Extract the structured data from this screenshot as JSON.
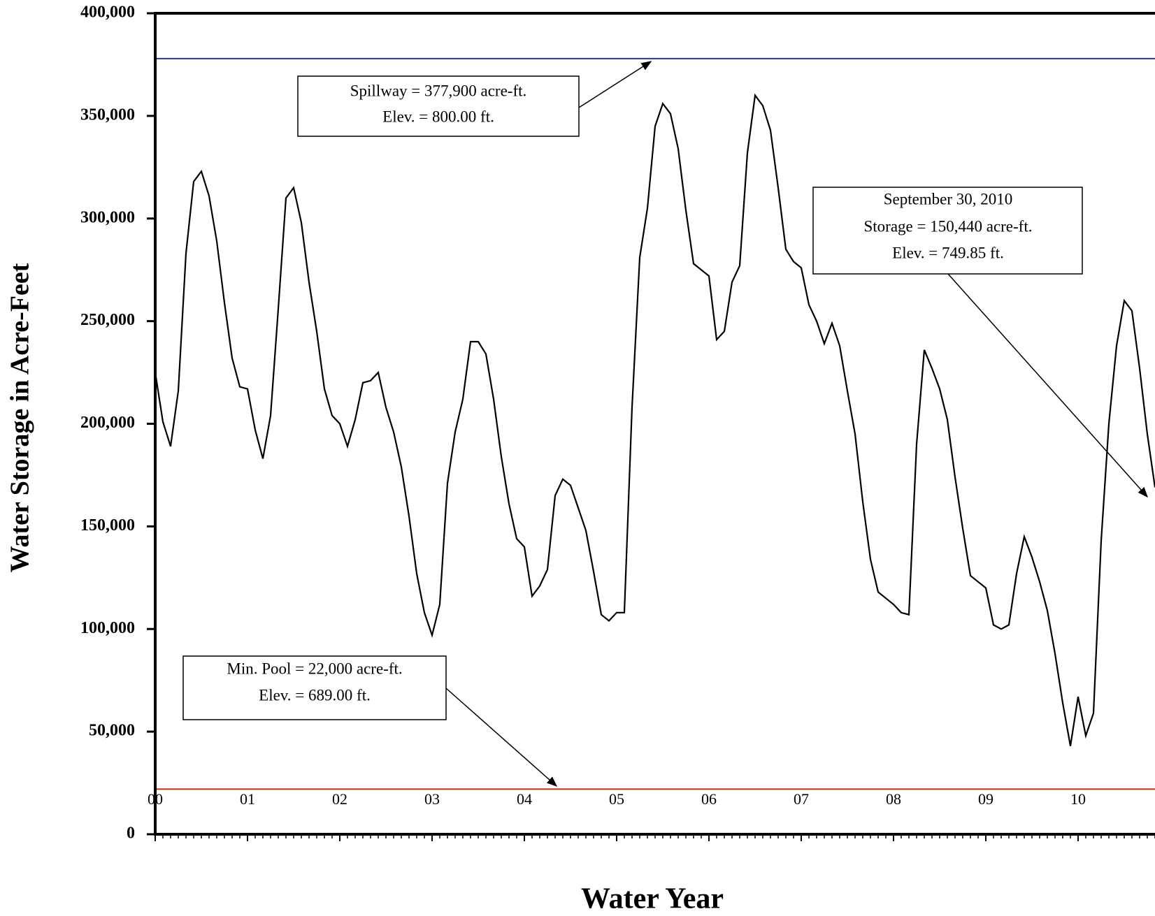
{
  "chart_data": {
    "type": "line",
    "y_label": "Water Storage in Acre-Feet",
    "x_label": "Water Year",
    "x": [
      0,
      1,
      2,
      3,
      4,
      5,
      6,
      7,
      8,
      9,
      10,
      11,
      12,
      13,
      14,
      15,
      16,
      17,
      18,
      19,
      20,
      21,
      22,
      23,
      24,
      25,
      26,
      27,
      28,
      29,
      30,
      31,
      32,
      33,
      34,
      35,
      36,
      37,
      38,
      39,
      40,
      41,
      42,
      43,
      44,
      45,
      46,
      47,
      48,
      49,
      50,
      51,
      52,
      53,
      54,
      55,
      56,
      57,
      58,
      59,
      60,
      61,
      62,
      63,
      64,
      65,
      66,
      67,
      68,
      69,
      70,
      71,
      72,
      73,
      74,
      75,
      76,
      77,
      78,
      79,
      80,
      81,
      82,
      83,
      84,
      85,
      86,
      87,
      88,
      89,
      90,
      91,
      92,
      93,
      94,
      95,
      96,
      97,
      98,
      99,
      100,
      101,
      102,
      103,
      104,
      105,
      106,
      107,
      108,
      109,
      110,
      111,
      112,
      113,
      114,
      115,
      116,
      117,
      118,
      119,
      120,
      121,
      122,
      123,
      124,
      125,
      126,
      127,
      128,
      129,
      130
    ],
    "series": [
      {
        "color": "#000000",
        "values": [
          225000,
          201000,
          189000,
          216000,
          283000,
          318000,
          323000,
          311000,
          289000,
          259000,
          232000,
          218000,
          217000,
          197000,
          183000,
          204000,
          256000,
          310000,
          315000,
          298000,
          269000,
          245000,
          217000,
          204000,
          200000,
          189000,
          202000,
          220000,
          221000,
          225000,
          208000,
          196000,
          179000,
          155000,
          127000,
          108000,
          97000,
          112000,
          171000,
          196000,
          212000,
          240000,
          240000,
          234000,
          212000,
          184000,
          161000,
          144000,
          140000,
          116000,
          121000,
          129000,
          165000,
          173000,
          170000,
          159000,
          148000,
          128000,
          107000,
          104000,
          108000,
          108000,
          208000,
          281000,
          305000,
          345000,
          356000,
          351000,
          334000,
          304000,
          278000,
          275000,
          272000,
          241000,
          245000,
          269000,
          277000,
          332000,
          360000,
          355000,
          343000,
          315000,
          285000,
          279000,
          276000,
          258000,
          250000,
          239000,
          249000,
          238000,
          216000,
          195000,
          162000,
          134000,
          118000,
          115000,
          112000,
          108000,
          107000,
          190000,
          236000,
          227000,
          217000,
          202000,
          174000,
          149000,
          126000,
          123000,
          120000,
          102000,
          100000,
          102000,
          127000,
          145000,
          135000,
          123000,
          109000,
          88000,
          64000,
          43000,
          67000,
          48000,
          59000,
          143000,
          200000,
          238000,
          260000,
          255000,
          227000,
          195000,
          169000
        ]
      }
    ],
    "reference_lines": [
      {
        "value": 377900,
        "color": "#2e3192"
      },
      {
        "value": 22000,
        "color": "#b5360f"
      }
    ],
    "annotations": [
      {
        "lines": [
          "Spillway = 377,900 acre-ft.",
          "Elev. = 800.00 ft."
        ]
      },
      {
        "lines": [
          "September 30, 2010",
          "Storage =  150,440 acre-ft.",
          "Elev. =  749.85 ft."
        ]
      },
      {
        "lines": [
          "Min. Pool = 22,000 acre-ft.",
          "Elev. = 689.00 ft."
        ]
      }
    ],
    "xlim": [
      0,
      130
    ],
    "xticks": [
      {
        "value": 0,
        "label": "00"
      },
      {
        "value": 12,
        "label": "01"
      },
      {
        "value": 24,
        "label": "02"
      },
      {
        "value": 36,
        "label": "03"
      },
      {
        "value": 48,
        "label": "04"
      },
      {
        "value": 60,
        "label": "05"
      },
      {
        "value": 72,
        "label": "06"
      },
      {
        "value": 84,
        "label": "07"
      },
      {
        "value": 96,
        "label": "08"
      },
      {
        "value": 108,
        "label": "09"
      },
      {
        "value": 120,
        "label": "10"
      }
    ],
    "xminorticks": [
      0,
      1,
      2,
      3,
      4,
      5,
      6,
      7,
      8,
      9,
      10,
      11,
      12,
      13,
      14,
      15,
      16,
      17,
      18,
      19,
      20,
      21,
      22,
      23,
      24,
      25,
      26,
      27,
      28,
      29,
      30,
      31,
      32,
      33,
      34,
      35,
      36,
      37,
      38,
      39,
      40,
      41,
      42,
      43,
      44,
      45,
      46,
      47,
      48,
      49,
      50,
      51,
      52,
      53,
      54,
      55,
      56,
      57,
      58,
      59,
      60,
      61,
      62,
      63,
      64,
      65,
      66,
      67,
      68,
      69,
      70,
      71,
      72,
      73,
      74,
      75,
      76,
      77,
      78,
      79,
      80,
      81,
      82,
      83,
      84,
      85,
      86,
      87,
      88,
      89,
      90,
      91,
      92,
      93,
      94,
      95,
      96,
      97,
      98,
      99,
      100,
      101,
      102,
      103,
      104,
      105,
      106,
      107,
      108,
      109,
      110,
      111,
      112,
      113,
      114,
      115,
      116,
      117,
      118,
      119,
      120,
      121,
      122,
      123,
      124,
      125,
      126,
      127,
      128,
      129,
      130
    ],
    "ylim": [
      0,
      400000
    ],
    "yticks": [
      0,
      {
        "value": 50000,
        "label": "50,000"
      },
      {
        "value": 100000,
        "label": "100,000"
      },
      {
        "value": 150000,
        "label": "150,000"
      },
      {
        "value": 200000,
        "label": "200,000"
      },
      {
        "value": 250000,
        "label": "250,000"
      },
      {
        "value": 300000,
        "label": "300,000"
      },
      {
        "value": 350000,
        "label": "350,000"
      },
      {
        "value": 400000,
        "label": "400,000"
      }
    ]
  }
}
